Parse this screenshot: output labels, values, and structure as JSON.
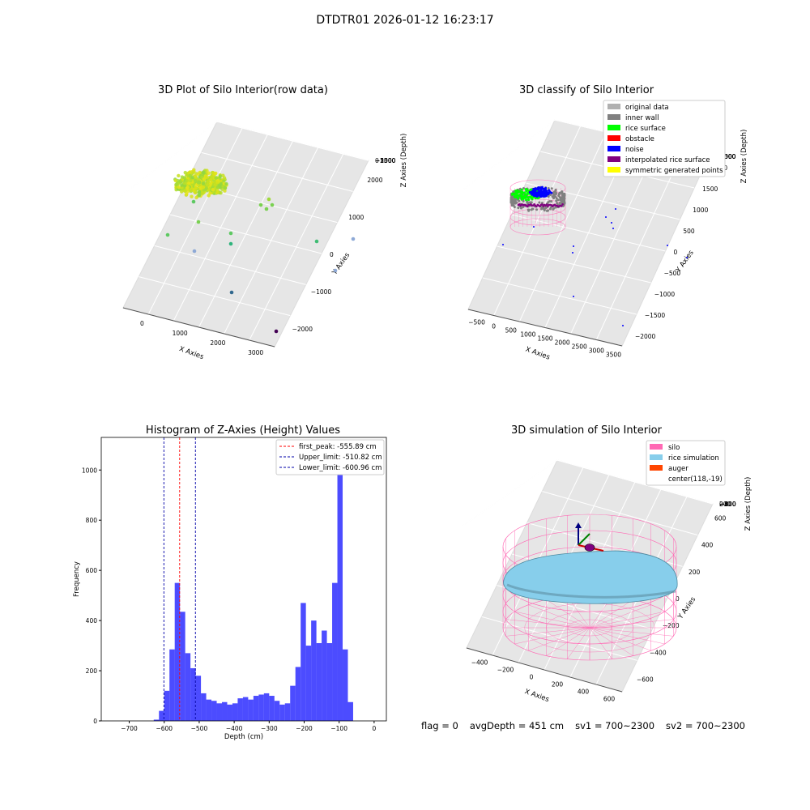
{
  "suptitle": "DTDTR01 2026-01-12 16:23:17",
  "panels": {
    "raw": {
      "title": "3D Plot of Silo Interior(row data)",
      "xlabel": "X Axies",
      "ylabel": "Y Axies",
      "zlabel": "Z Axies (Depth)",
      "x_ticks": [
        "0",
        "1000",
        "2000",
        "3000"
      ],
      "y_ticks": [
        "2000",
        "1000",
        "0",
        "−1000",
        "−2000"
      ],
      "z_ticks": [
        "0",
        "−500",
        "−1000",
        "−1500",
        "−2000",
        "−2500"
      ]
    },
    "classify": {
      "title": "3D classify of Silo Interior",
      "xlabel": "X Axies",
      "ylabel": "Y Axies",
      "zlabel": "Z Axies (Depth)",
      "x_ticks": [
        "−500",
        "0",
        "500",
        "1000",
        "1500",
        "2000",
        "2500",
        "3000",
        "3500"
      ],
      "y_ticks": [
        "2000",
        "1500",
        "1000",
        "500",
        "0",
        "−500",
        "−1000",
        "−1500",
        "−2000"
      ],
      "z_ticks": [
        "0",
        "−500",
        "−1000",
        "−1500",
        "−2000",
        "−2500",
        "−3000"
      ],
      "legend": [
        {
          "label": "original data",
          "color": "#b0b0b0"
        },
        {
          "label": "inner wall",
          "color": "#808080"
        },
        {
          "label": "rice surface",
          "color": "#00ff00"
        },
        {
          "label": "obstacle",
          "color": "#ff0000"
        },
        {
          "label": "noise",
          "color": "#0000ff"
        },
        {
          "label": "interpolated rice surface",
          "color": "#800080"
        },
        {
          "label": "symmetric generated points",
          "color": "#ffff00"
        }
      ]
    },
    "simulation": {
      "title": "3D simulation of Silo Interior",
      "xlabel": "X Axies",
      "ylabel": "Y Axies",
      "zlabel": "Z Axies (Depth)",
      "x_ticks": [
        "−400",
        "−200",
        "0",
        "200",
        "400",
        "600"
      ],
      "y_ticks": [
        "600",
        "400",
        "200",
        "0",
        "−200",
        "−400",
        "−600"
      ],
      "z_ticks": [
        "200",
        "0",
        "−200",
        "−400",
        "−600",
        "−800"
      ],
      "legend": [
        {
          "label": "silo",
          "color": "#ff69b4"
        },
        {
          "label": "rice simulation",
          "color": "#87ceeb"
        },
        {
          "label": "auger",
          "color": "#ff4500"
        },
        {
          "label": "center(118,-19)",
          "color": ""
        }
      ]
    }
  },
  "status": {
    "flag": "flag = 0",
    "avg_depth": "avgDepth = 451 cm",
    "sv1": "sv1 = 700~2300",
    "sv2": "sv2 = 700~2300"
  },
  "chart_data": [
    {
      "type": "histogram",
      "title": "Histogram of Z-Axies (Height) Values",
      "xlabel": "Depth (cm)",
      "ylabel": "Frequency",
      "xlim": [
        -780,
        35
      ],
      "ylim": [
        0,
        1130
      ],
      "x_ticks": [
        -700,
        -600,
        -500,
        -400,
        -300,
        -200,
        -100,
        0
      ],
      "y_ticks": [
        0,
        200,
        400,
        600,
        800,
        1000
      ],
      "bin_width": 15,
      "bin_start": -630,
      "counts": [
        5,
        40,
        120,
        285,
        550,
        435,
        270,
        210,
        180,
        110,
        85,
        80,
        70,
        75,
        65,
        70,
        90,
        95,
        85,
        100,
        105,
        110,
        100,
        80,
        65,
        70,
        140,
        215,
        470,
        300,
        400,
        310,
        360,
        310,
        550,
        1085,
        285,
        75
      ],
      "bar_color": "#0000ff",
      "vlines": [
        {
          "label": "first_peak: -555.89 cm",
          "x": -555.89,
          "color": "#ff0000"
        },
        {
          "label": "Upper_limit: -510.82 cm",
          "x": -510.82,
          "color": "#0000aa"
        },
        {
          "label": "Lower_limit: -600.96 cm",
          "x": -600.96,
          "color": "#0000aa"
        }
      ],
      "legend_position": "top-right"
    }
  ]
}
